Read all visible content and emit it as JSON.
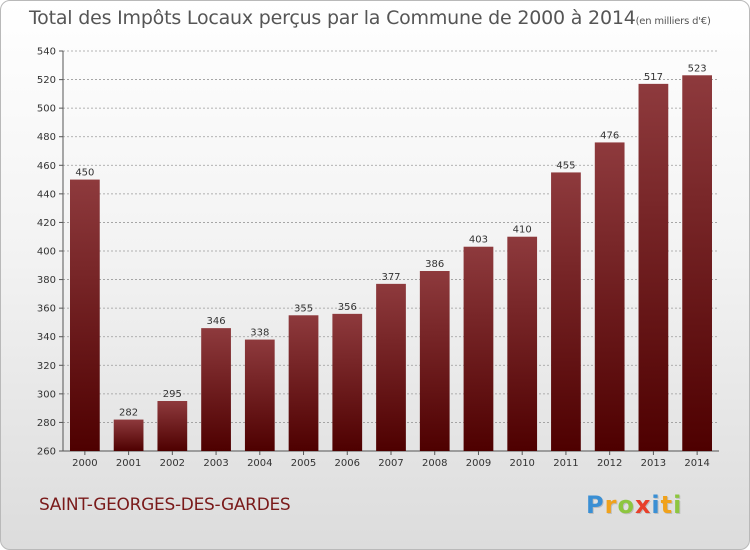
{
  "title": "Total des Impôts Locaux perçus par la Commune de 2000 à 2014",
  "unit": "(en milliers d'€)",
  "commune": "SAINT-GEORGES-DES-GARDES",
  "logo": {
    "text": "Proxiti",
    "letters": [
      {
        "char": "P",
        "color": "#3a8fd4"
      },
      {
        "char": "r",
        "color": "#f0a21c"
      },
      {
        "char": "o",
        "color": "#8dc63f"
      },
      {
        "char": "x",
        "color": "#e8402a"
      },
      {
        "char": "i",
        "color": "#3a8fd4"
      },
      {
        "char": "t",
        "color": "#f0a21c"
      },
      {
        "char": "i",
        "color": "#8dc63f"
      }
    ]
  },
  "colors": {
    "bar_top": "#8e3a3d",
    "bar_bottom": "#4e0000",
    "grid": "#9a9a9a"
  },
  "chart_data": {
    "type": "bar",
    "categories": [
      "2000",
      "2001",
      "2002",
      "2003",
      "2004",
      "2005",
      "2006",
      "2007",
      "2008",
      "2009",
      "2010",
      "2011",
      "2012",
      "2013",
      "2014"
    ],
    "values": [
      450,
      282,
      295,
      346,
      338,
      355,
      356,
      377,
      386,
      403,
      410,
      455,
      476,
      517,
      523
    ],
    "ylim": [
      260,
      540
    ],
    "yticks": [
      260,
      280,
      300,
      320,
      340,
      360,
      380,
      400,
      420,
      440,
      460,
      480,
      500,
      520,
      540
    ],
    "grid": true,
    "xlabel": "",
    "ylabel": ""
  }
}
